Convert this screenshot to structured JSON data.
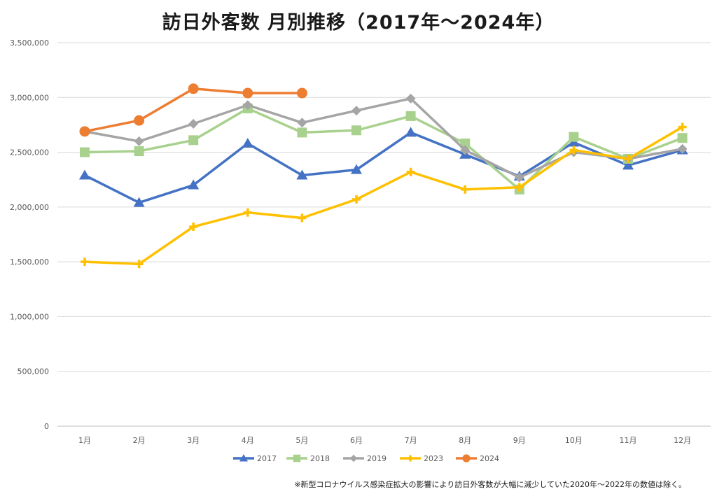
{
  "chart_data": {
    "type": "line",
    "title": "訪日外客数 月別推移（2017年～2024年）",
    "xlabel": "",
    "ylabel": "",
    "ylim": [
      0,
      3500000
    ],
    "yticks": [
      0,
      500000,
      1000000,
      1500000,
      2000000,
      2500000,
      3000000,
      3500000
    ],
    "ytick_labels": [
      "0",
      "500,000",
      "1,000,000",
      "1,500,000",
      "2,000,000",
      "2,500,000",
      "3,000,000",
      "3,500,000"
    ],
    "grid": true,
    "legend_position": "bottom-center",
    "categories": [
      "1月",
      "2月",
      "3月",
      "4月",
      "5月",
      "6月",
      "7月",
      "8月",
      "9月",
      "10月",
      "11月",
      "12月"
    ],
    "series": [
      {
        "name": "2017",
        "color": "#4472C4",
        "marker": "triangle",
        "values": [
          2290000,
          2040000,
          2200000,
          2580000,
          2290000,
          2340000,
          2680000,
          2480000,
          2280000,
          2590000,
          2380000,
          2520000
        ]
      },
      {
        "name": "2018",
        "color": "#A9D18E",
        "marker": "square",
        "values": [
          2500000,
          2510000,
          2610000,
          2900000,
          2680000,
          2700000,
          2830000,
          2580000,
          2160000,
          2640000,
          2440000,
          2630000
        ]
      },
      {
        "name": "2019",
        "color": "#A5A5A5",
        "marker": "diamond",
        "values": [
          2690000,
          2600000,
          2760000,
          2930000,
          2770000,
          2880000,
          2990000,
          2520000,
          2270000,
          2500000,
          2440000,
          2530000
        ]
      },
      {
        "name": "2023",
        "color": "#FFC000",
        "marker": "plus",
        "values": [
          1500000,
          1480000,
          1820000,
          1950000,
          1900000,
          2070000,
          2320000,
          2160000,
          2180000,
          2520000,
          2440000,
          2730000
        ]
      },
      {
        "name": "2024",
        "color": "#ED7D31",
        "marker": "circle",
        "values": [
          2690000,
          2790000,
          3080000,
          3040000,
          3040000,
          null,
          null,
          null,
          null,
          null,
          null,
          null
        ]
      }
    ]
  },
  "footnote": "※新型コロナウイルス感染症拡大の影響により訪日外客数が大幅に減少していた2020年～2022年の数値は除く。"
}
